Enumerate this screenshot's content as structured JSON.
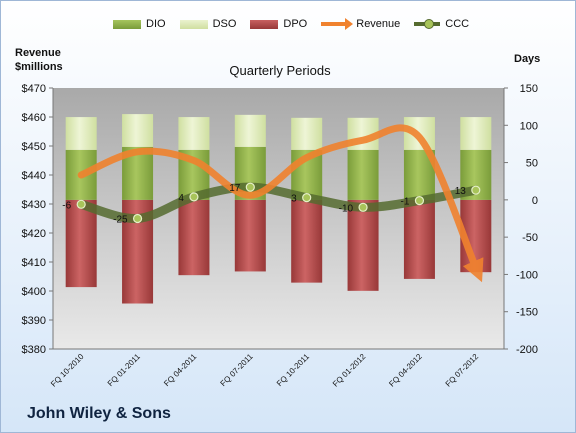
{
  "chart_data": {
    "type": "bar",
    "title": "Quarterly Periods",
    "company": "John Wiley & Sons",
    "ylabel_left": [
      "Revenue",
      "$millions"
    ],
    "ylabel_right": "Days",
    "categories": [
      "FQ 10-2010",
      "FQ 01-2011",
      "FQ 04-2011",
      "FQ 07-2011",
      "FQ 10-2011",
      "FQ 01-2012",
      "FQ 04-2012",
      "FQ 07-2012"
    ],
    "left_axis": {
      "min": 380,
      "max": 470,
      "step": 10,
      "ticks": [
        "$380",
        "$390",
        "$400",
        "$410",
        "$420",
        "$430",
        "$440",
        "$450",
        "$460",
        "$470"
      ]
    },
    "right_axis": {
      "min": -200,
      "max": 150,
      "step": 50,
      "ticks": [
        "-200",
        "-150",
        "-100",
        "-50",
        "0",
        "50",
        "100",
        "150"
      ]
    },
    "series": [
      {
        "name": "DIO",
        "kind": "bar",
        "color": "#8cb04a",
        "values": [
          67,
          71,
          67,
          71,
          67,
          67,
          67,
          67
        ]
      },
      {
        "name": "DSO",
        "kind": "bar",
        "color": "#dbe8b6",
        "values": [
          44,
          44,
          44,
          43,
          43,
          43,
          44,
          44
        ]
      },
      {
        "name": "DPO",
        "kind": "bar",
        "color": "#b04a4a",
        "values": [
          -117,
          -139,
          -101,
          -96,
          -111,
          -122,
          -106,
          -97
        ]
      },
      {
        "name": "Revenue",
        "kind": "line",
        "color": "#f0822e",
        "axis": "left",
        "values": [
          440,
          448,
          445,
          433,
          446,
          452,
          453,
          408
        ]
      },
      {
        "name": "CCC",
        "kind": "line",
        "color": "#556b2f",
        "axis": "right",
        "values": [
          -6,
          -25,
          4,
          17,
          3,
          -10,
          -1,
          13
        ],
        "labels": [
          "-6",
          "-25",
          "4",
          "17",
          "3",
          "-10",
          "-1",
          "13"
        ]
      }
    ],
    "legend_position": "top",
    "grid": false
  }
}
